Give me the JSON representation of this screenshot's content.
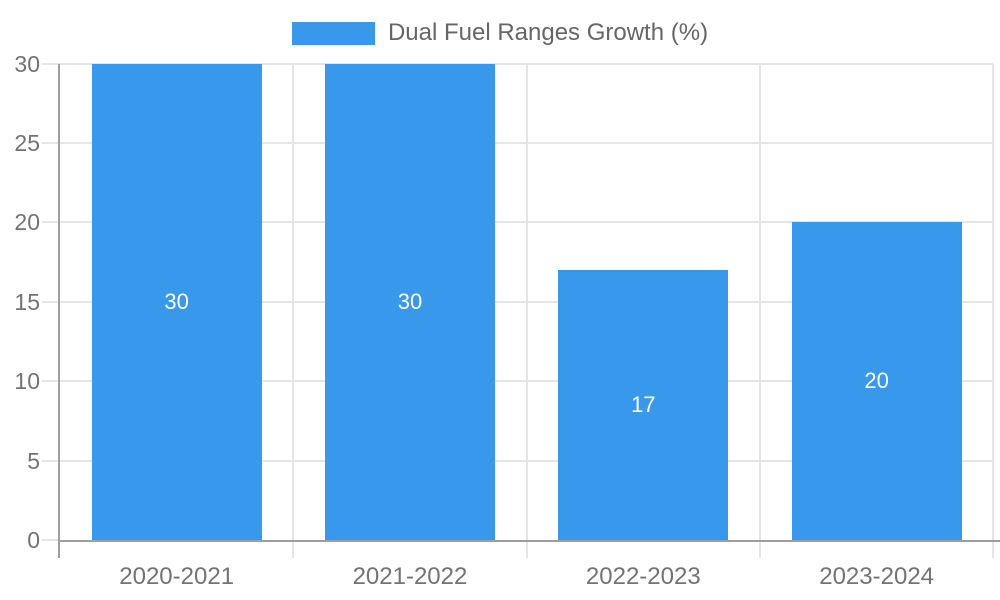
{
  "legend": {
    "label": "Dual Fuel Ranges Growth (%)"
  },
  "chart_data": {
    "type": "bar",
    "title": "Dual Fuel Ranges Growth (%)",
    "categories": [
      "2020-2021",
      "2021-2022",
      "2022-2023",
      "2023-2024"
    ],
    "values": [
      30,
      30,
      17,
      20
    ],
    "bar_labels": [
      "30",
      "30",
      "17",
      "20"
    ],
    "xlabel": "",
    "ylabel": "",
    "ylim": [
      0,
      30
    ],
    "yticks": [
      0,
      5,
      10,
      15,
      20,
      25,
      30
    ],
    "ytick_labels": [
      "0",
      "5",
      "10",
      "15",
      "20",
      "25",
      "30"
    ],
    "grid": true,
    "legend_position": "top-center",
    "colors": {
      "bar": "#3898EC",
      "bar_label": "#FFFFFF",
      "axis_line": "#9E9E9E",
      "gridline": "#E5E5E5",
      "tick_label": "#737373",
      "legend_text": "#666666",
      "background": "#FFFFFF"
    }
  }
}
